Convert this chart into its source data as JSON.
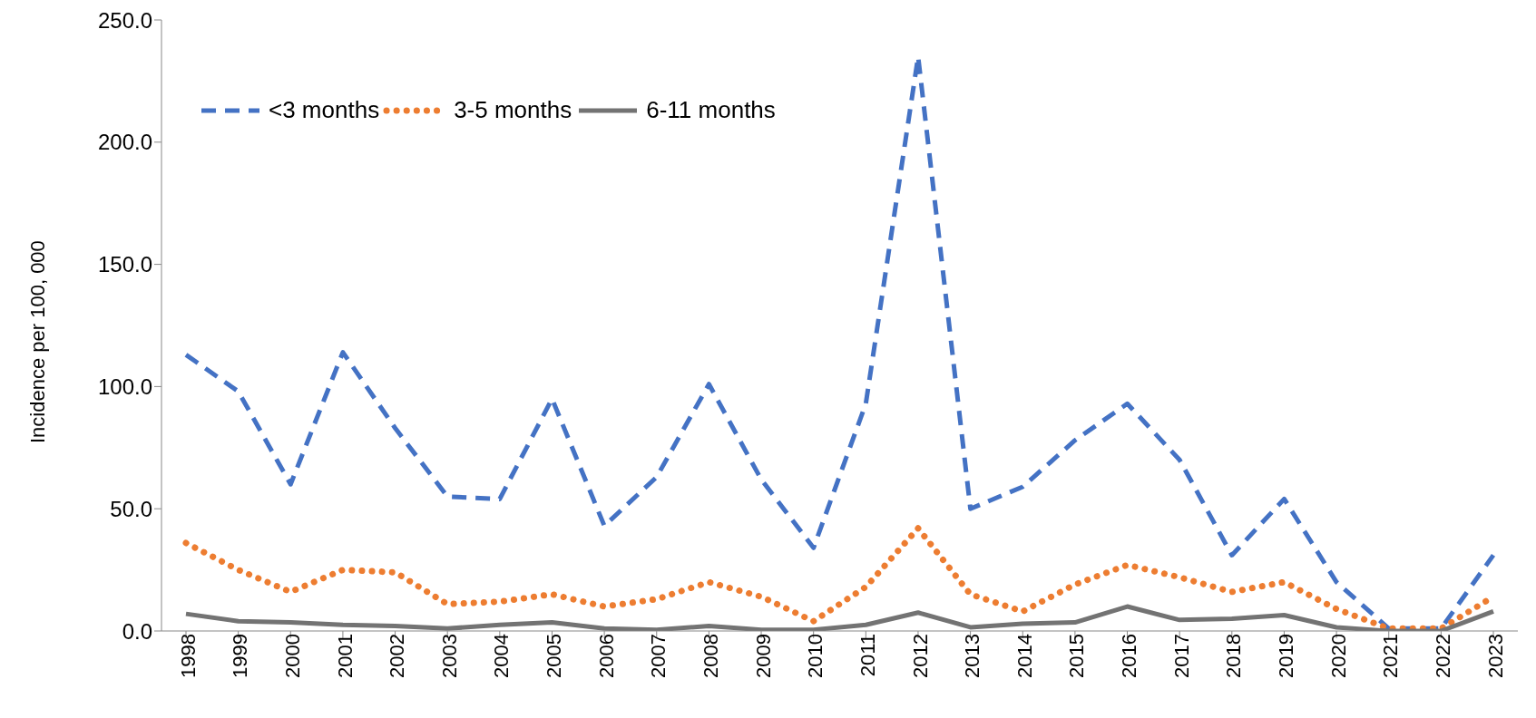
{
  "chart_data": {
    "type": "line",
    "ylabel": "Incidence per 100, 000",
    "categories": [
      "1998",
      "1999",
      "2000",
      "2001",
      "2002",
      "2003",
      "2004",
      "2005",
      "2006",
      "2007",
      "2008",
      "2009",
      "2010",
      "2011",
      "2012",
      "2013",
      "2014",
      "2015",
      "2016",
      "2017",
      "2018",
      "2019",
      "2020",
      "2021",
      "2022",
      "2023"
    ],
    "series": [
      {
        "name": "<3 months",
        "color": "#4472c4",
        "line_style": "dashed",
        "values": [
          113,
          98,
          60,
          114,
          83,
          55,
          54,
          95,
          43,
          63,
          101,
          62,
          34,
          93,
          235,
          50,
          59,
          78,
          93,
          70,
          31,
          54,
          20,
          1,
          1,
          31
        ]
      },
      {
        "name": "3-5 months",
        "color": "#ed7d31",
        "line_style": "dotted",
        "values": [
          36,
          25,
          16,
          25,
          24,
          11,
          12,
          15,
          10,
          13,
          20,
          14,
          4,
          18,
          42,
          15,
          8,
          19,
          27,
          22,
          16,
          20,
          9,
          1,
          1,
          14
        ]
      },
      {
        "name": "6-11 months",
        "color": "#737373",
        "line_style": "solid",
        "values": [
          7,
          4,
          3.5,
          2.5,
          2,
          1,
          2.5,
          3.5,
          1,
          0.5,
          2,
          0.5,
          0.5,
          2.5,
          7.5,
          1.5,
          3,
          3.5,
          10,
          4.5,
          5,
          6.5,
          1.5,
          0,
          0,
          8
        ]
      }
    ],
    "ylim": [
      0,
      250
    ],
    "yticks": [
      {
        "value": 0,
        "label": "0.0"
      },
      {
        "value": 50,
        "label": "50.0"
      },
      {
        "value": 100,
        "label": "100.0"
      },
      {
        "value": 150,
        "label": "150.0"
      },
      {
        "value": 200,
        "label": "200.0"
      },
      {
        "value": 250,
        "label": "250.0"
      }
    ],
    "legend": "top left",
    "grid": false,
    "marker": "none"
  }
}
